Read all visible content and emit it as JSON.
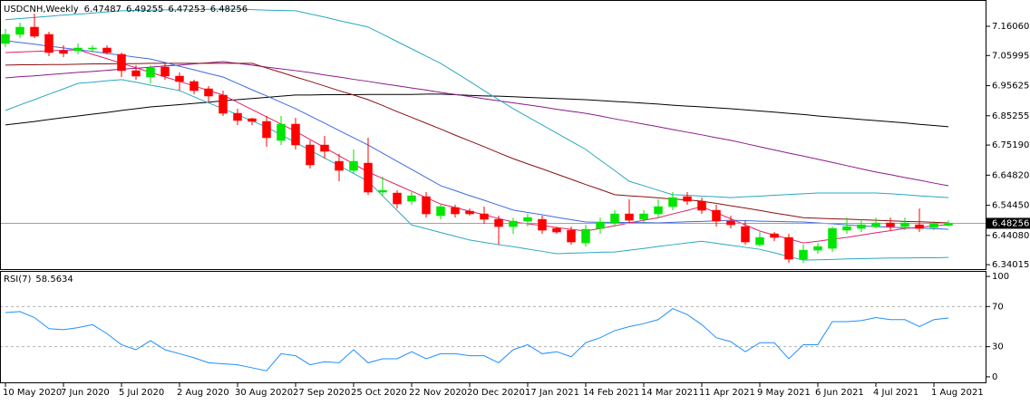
{
  "chart_data": [
    {
      "type": "candlestick",
      "title": "USDCNH,Weekly",
      "categories": [
        "10 May 2020",
        null,
        null,
        null,
        "7 Jun 2020",
        null,
        null,
        null,
        "5 Jul 2020",
        null,
        null,
        null,
        "2 Aug 2020",
        null,
        null,
        null,
        "30 Aug 2020",
        null,
        null,
        null,
        "27 Sep 2020",
        null,
        null,
        null,
        "25 Oct 2020",
        null,
        null,
        null,
        "22 Nov 2020",
        null,
        null,
        null,
        "20 Dec 2020",
        null,
        null,
        null,
        "17 Jan 2021",
        null,
        null,
        null,
        "14 Feb 2021",
        null,
        null,
        null,
        "14 Mar 2021",
        null,
        null,
        null,
        "11 Apr 2021",
        null,
        null,
        null,
        "9 May 2021",
        null,
        null,
        null,
        "6 Jun 2021",
        null,
        null,
        null,
        "4 Jul 2021",
        null,
        null,
        null,
        "1 Aug 2021",
        null
      ],
      "open": [
        7.1014,
        7.1326,
        7.1575,
        7.1326,
        7.0764,
        7.0764,
        7.0827,
        7.0858,
        7.064,
        7.0078,
        6.986,
        7.0203,
        6.9891,
        6.9704,
        6.9454,
        6.9236,
        6.8612,
        6.8425,
        6.8332,
        6.7677,
        6.8238,
        6.7521,
        6.7521,
        6.6959,
        6.6647,
        6.6897,
        6.5899,
        6.5868,
        6.5587,
        6.5743,
        6.5088,
        6.5369,
        6.5244,
        6.515,
        6.4963,
        6.4713,
        6.4901,
        6.4963,
        6.4651,
        6.4589,
        6.4152,
        6.4651,
        6.4838,
        6.515,
        6.4963,
        6.515,
        6.54,
        6.5743,
        6.5587,
        6.5275,
        6.4901,
        6.4713,
        6.409,
        6.4464,
        6.4339,
        6.359,
        6.3902,
        6.3964,
        6.4589,
        6.4651,
        6.4713,
        6.4838,
        6.4713,
        6.4776,
        6.4682,
        6.47487
      ],
      "high": [
        7.1513,
        7.1731,
        7.2043,
        7.1419,
        7.0952,
        7.1014,
        7.0952,
        7.0952,
        7.0702,
        7.0265,
        7.0265,
        7.0328,
        7.0016,
        6.9766,
        6.9548,
        6.9392,
        6.8768,
        6.8457,
        6.8519,
        6.8519,
        6.8457,
        6.7677,
        6.7833,
        6.7209,
        6.7365,
        6.777,
        6.6429,
        6.5961,
        6.5899,
        6.5899,
        6.5462,
        6.5462,
        6.5337,
        6.54,
        6.5088,
        6.5025,
        6.515,
        6.5088,
        6.4713,
        6.4713,
        6.4776,
        6.5025,
        6.5275,
        6.5649,
        6.5275,
        6.5649,
        6.5899,
        6.5899,
        6.5712,
        6.5462,
        6.5088,
        6.4901,
        6.4526,
        6.4526,
        6.4464,
        6.409,
        6.4152,
        6.4713,
        6.5025,
        6.4963,
        6.5025,
        6.5025,
        6.5025,
        6.5337,
        6.4901,
        6.49255
      ],
      "low": [
        7.0889,
        7.1201,
        7.1201,
        7.0577,
        7.0546,
        7.064,
        7.0702,
        7.064,
        6.986,
        6.9766,
        6.9642,
        6.9766,
        6.9392,
        6.9267,
        6.9018,
        6.8519,
        6.8207,
        6.8207,
        6.7458,
        6.7521,
        6.7365,
        6.671,
        6.7053,
        6.6273,
        6.6522,
        6.5805,
        6.5774,
        6.5337,
        6.5462,
        6.5025,
        6.4963,
        6.5025,
        6.5088,
        6.4807,
        6.409,
        6.4464,
        6.4713,
        6.4464,
        6.4464,
        6.409,
        6.4027,
        6.4464,
        6.4713,
        6.4838,
        6.4838,
        6.5025,
        6.5275,
        6.5462,
        6.515,
        6.4713,
        6.4651,
        6.409,
        6.4027,
        6.4215,
        6.3466,
        6.3466,
        6.3777,
        6.384,
        6.4464,
        6.4526,
        6.4651,
        6.4589,
        6.4589,
        6.4526,
        6.4589,
        6.47253
      ],
      "close": [
        7.1326,
        7.1575,
        7.1263,
        7.0702,
        7.0671,
        7.0858,
        7.0858,
        7.0702,
        7.0078,
        6.9891,
        7.0172,
        6.9891,
        6.9704,
        6.9392,
        6.9205,
        6.8612,
        6.8363,
        6.8332,
        6.777,
        6.8238,
        6.7521,
        6.6835,
        6.7302,
        6.6647,
        6.6959,
        6.5899,
        6.5961,
        6.5493,
        6.5774,
        6.515,
        6.54,
        6.515,
        6.515,
        6.4963,
        6.4713,
        6.4901,
        6.5025,
        6.4589,
        6.4526,
        6.4183,
        6.462,
        6.4869,
        6.515,
        6.4932,
        6.515,
        6.54,
        6.5712,
        6.5587,
        6.5275,
        6.4901,
        6.4776,
        6.4183,
        6.4339,
        6.4339,
        6.359,
        6.3902,
        6.4027,
        6.4651,
        6.4713,
        6.4776,
        6.4838,
        6.4713,
        6.4838,
        6.4651,
        6.4807,
        6.48256
      ],
      "up_color": "#00e600",
      "down_color": "#ff0000",
      "current_price_line": true,
      "lines": [
        {
          "color": "#000000",
          "values": [
            6.821,
            6.827,
            6.833,
            6.84,
            6.846,
            6.852,
            6.858,
            6.864,
            6.871,
            6.877,
            6.883,
            6.887,
            6.891,
            6.895,
            6.899,
            6.904,
            6.908,
            6.912,
            6.916,
            6.92,
            6.924,
            6.924,
            6.925,
            6.925,
            6.925,
            6.926,
            6.926,
            6.926,
            6.926,
            6.927,
            6.927,
            6.925,
            6.923,
            6.921,
            6.92,
            6.918,
            6.916,
            6.914,
            6.912,
            6.91,
            6.908,
            6.905,
            6.902,
            6.899,
            6.896,
            6.893,
            6.889,
            6.886,
            6.883,
            6.88,
            6.877,
            6.873,
            6.869,
            6.865,
            6.861,
            6.857,
            6.852,
            6.848,
            6.844,
            6.84,
            6.836,
            6.832,
            6.828,
            6.823,
            6.819,
            6.815
          ]
        },
        {
          "color": "#8b1a8b",
          "values": [
            6.983,
            6.987,
            6.99,
            6.994,
            6.998,
            7.002,
            7.005,
            7.009,
            7.013,
            7.016,
            7.02,
            7.024,
            7.027,
            7.031,
            7.035,
            7.039,
            7.033,
            7.027,
            7.02,
            7.014,
            7.008,
            7.001,
            6.993,
            6.986,
            6.978,
            6.971,
            6.963,
            6.956,
            6.948,
            6.941,
            6.933,
            6.926,
            6.919,
            6.911,
            6.904,
            6.897,
            6.89,
            6.883,
            6.875,
            6.868,
            6.861,
            6.852,
            6.842,
            6.833,
            6.824,
            6.815,
            6.805,
            6.796,
            6.787,
            6.777,
            6.768,
            6.757,
            6.746,
            6.735,
            6.724,
            6.714,
            6.703,
            6.692,
            6.681,
            6.67,
            6.659,
            6.65,
            6.64,
            6.631,
            6.621,
            6.612
          ]
        },
        {
          "color": "#8b1010",
          "values": [
            7.027,
            7.028,
            7.028,
            7.029,
            7.029,
            7.03,
            7.031,
            7.031,
            7.032,
            7.032,
            7.033,
            7.033,
            7.033,
            7.033,
            7.033,
            7.033,
            7.033,
            7.033,
            7.017,
            7.002,
            6.986,
            6.971,
            6.955,
            6.939,
            6.924,
            6.908,
            6.888,
            6.867,
            6.847,
            6.827,
            6.807,
            6.786,
            6.766,
            6.746,
            6.725,
            6.705,
            6.687,
            6.67,
            6.652,
            6.634,
            6.616,
            6.599,
            6.581,
            6.577,
            6.574,
            6.57,
            6.566,
            6.563,
            6.559,
            6.551,
            6.543,
            6.535,
            6.527,
            6.518,
            6.51,
            6.502,
            6.5,
            6.498,
            6.497,
            6.495,
            6.493,
            6.491,
            6.489,
            6.488,
            6.486,
            6.484
          ]
        },
        {
          "color": "#2aa8c0",
          "values": [
            7.183,
            7.187,
            7.191,
            7.195,
            7.199,
            7.202,
            7.206,
            7.21,
            7.214,
            7.215,
            7.216,
            7.217,
            7.217,
            7.218,
            7.219,
            7.22,
            7.219,
            7.218,
            7.216,
            7.215,
            7.214,
            7.203,
            7.192,
            7.18,
            7.169,
            7.158,
            7.133,
            7.108,
            7.083,
            7.058,
            7.033,
            7.002,
            6.971,
            6.939,
            6.908,
            6.877,
            6.849,
            6.821,
            6.793,
            6.765,
            6.737,
            6.7,
            6.664,
            6.627,
            6.612,
            6.596,
            6.581,
            6.579,
            6.576,
            6.574,
            6.571,
            6.574,
            6.576,
            6.579,
            6.582,
            6.584,
            6.587,
            6.587,
            6.587,
            6.587,
            6.587,
            6.584,
            6.581,
            6.577,
            6.574,
            6.571
          ]
        },
        {
          "color": "#2aa8c0",
          "values": [
            6.871,
            6.89,
            6.908,
            6.927,
            6.945,
            6.964,
            6.968,
            6.973,
            6.977,
            6.968,
            6.958,
            6.949,
            6.939,
            6.918,
            6.897,
            6.877,
            6.856,
            6.835,
            6.814,
            6.787,
            6.761,
            6.734,
            6.707,
            6.681,
            6.654,
            6.627,
            6.577,
            6.527,
            6.477,
            6.464,
            6.451,
            6.438,
            6.425,
            6.417,
            6.409,
            6.402,
            6.394,
            6.386,
            6.378,
            6.38,
            6.381,
            6.383,
            6.384,
            6.39,
            6.396,
            6.403,
            6.409,
            6.415,
            6.421,
            6.414,
            6.407,
            6.4,
            6.393,
            6.381,
            6.368,
            6.356,
            6.357,
            6.358,
            6.36,
            6.361,
            6.362,
            6.363,
            6.363,
            6.364,
            6.364,
            6.365
          ]
        },
        {
          "color": "#4169e1",
          "values": [
            7.111,
            7.105,
            7.099,
            7.092,
            7.086,
            7.08,
            7.074,
            7.067,
            7.061,
            7.054,
            7.048,
            7.036,
            7.023,
            7.011,
            6.998,
            6.986,
            6.964,
            6.942,
            6.921,
            6.899,
            6.877,
            6.852,
            6.827,
            6.802,
            6.777,
            6.752,
            6.724,
            6.696,
            6.668,
            6.64,
            6.612,
            6.595,
            6.578,
            6.562,
            6.545,
            6.528,
            6.52,
            6.512,
            6.503,
            6.495,
            6.487,
            6.486,
            6.486,
            6.485,
            6.485,
            6.484,
            6.486,
            6.488,
            6.489,
            6.491,
            6.493,
            6.492,
            6.49,
            6.489,
            6.488,
            6.487,
            6.484,
            6.481,
            6.477,
            6.474,
            6.471,
            6.469,
            6.467,
            6.466,
            6.464,
            6.462
          ]
        },
        {
          "color": "#e0206a",
          "values": [
            7.07,
            7.072,
            7.074,
            7.076,
            7.078,
            7.08,
            7.064,
            7.049,
            7.033,
            7.018,
            7.002,
            6.986,
            6.971,
            6.955,
            6.94,
            6.924,
            6.899,
            6.874,
            6.849,
            6.824,
            6.799,
            6.771,
            6.743,
            6.715,
            6.687,
            6.659,
            6.637,
            6.615,
            6.593,
            6.571,
            6.549,
            6.537,
            6.524,
            6.512,
            6.499,
            6.487,
            6.481,
            6.475,
            6.468,
            6.462,
            6.456,
            6.465,
            6.474,
            6.484,
            6.493,
            6.502,
            6.515,
            6.527,
            6.54,
            6.519,
            6.498,
            6.477,
            6.456,
            6.442,
            6.429,
            6.415,
            6.421,
            6.428,
            6.434,
            6.442,
            6.45,
            6.457,
            6.465,
            6.469,
            6.474,
            6.478
          ]
        }
      ],
      "ylim": [
        6.325,
        7.251
      ],
      "yticks": [
        {
          "value": 7.1606,
          "label": "7.16060"
        },
        7.05995,
        6.95625,
        6.85255,
        {
          "value": 6.7519,
          "label": "6.75190"
        },
        {
          "value": 6.6482,
          "label": "6.64820"
        },
        {
          "value": 6.5445,
          "label": "6.54450"
        },
        {
          "value": 6.4408,
          "label": "6.44080"
        },
        6.34015
      ]
    },
    {
      "type": "line",
      "title": "RSI(7)",
      "values": [
        64,
        65,
        59,
        48,
        47,
        49,
        52,
        43,
        32,
        27,
        36,
        27,
        23,
        19,
        14,
        13,
        12,
        9,
        6,
        23,
        21,
        12,
        15,
        14,
        27,
        14,
        18,
        18,
        25,
        18,
        23,
        23,
        21,
        21,
        14,
        27,
        32,
        23,
        25,
        20,
        34,
        39,
        46,
        50,
        53,
        57,
        68,
        62,
        52,
        39,
        35,
        25,
        34,
        34,
        18,
        32,
        32,
        55,
        55,
        56,
        59,
        57,
        57,
        50,
        57,
        58.5634
      ],
      "color": "#1e90ff",
      "ylim": [
        -6.4,
        105.5
      ],
      "yticks": [
        100,
        70,
        30,
        0
      ],
      "levels": [
        30,
        70
      ]
    }
  ]
}
